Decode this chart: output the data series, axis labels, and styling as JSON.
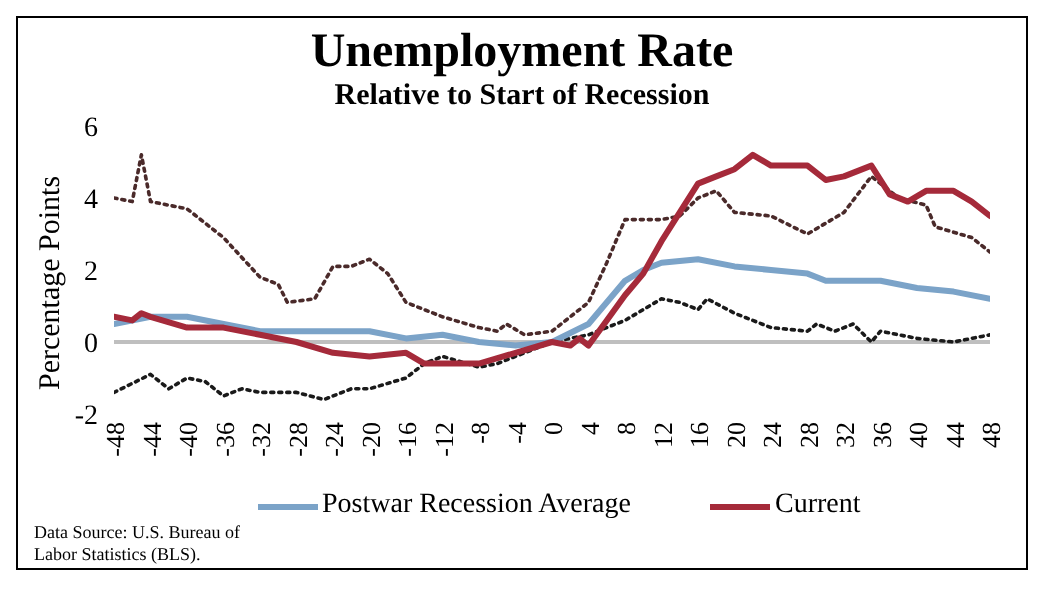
{
  "chart_data": {
    "type": "line",
    "title": "Unemployment Rate",
    "subtitle": "Relative to Start of Recession",
    "ylabel": "Percentage Points",
    "xlim": [
      -48,
      48
    ],
    "xticks": [
      -48,
      -44,
      -40,
      -36,
      -32,
      -28,
      -24,
      -20,
      -16,
      -12,
      -8,
      -4,
      0,
      4,
      8,
      12,
      16,
      20,
      24,
      28,
      32,
      36,
      40,
      44,
      48
    ],
    "ylim": [
      -2,
      6
    ],
    "yticks": [
      -2,
      0,
      2,
      4,
      6
    ],
    "grid": false,
    "legend": "bottom",
    "marker": "none",
    "ref_lines": [
      {
        "axis": "y",
        "value": 0,
        "color": "#bfbfbf"
      }
    ],
    "annotations": [
      "Data Source: U.S. Bureau of Labor Statistics (BLS)."
    ],
    "series": [
      {
        "line_style": "dotted",
        "color": "#4a2a2a",
        "x": [
          -48,
          -46,
          -45,
          -44,
          -40,
          -36,
          -32,
          -30,
          -29,
          -26,
          -24,
          -22,
          -20,
          -18,
          -16,
          -12,
          -8,
          -6,
          -5,
          -3,
          0,
          4,
          6,
          8,
          12,
          14,
          16,
          18,
          20,
          24,
          28,
          32,
          35,
          38,
          41,
          42,
          46,
          48
        ],
        "values": [
          4.0,
          3.9,
          5.2,
          3.9,
          3.7,
          2.9,
          1.8,
          1.6,
          1.1,
          1.2,
          2.1,
          2.1,
          2.3,
          1.9,
          1.1,
          0.7,
          0.4,
          0.3,
          0.5,
          0.2,
          0.3,
          1.1,
          2.2,
          3.4,
          3.4,
          3.5,
          4.0,
          4.2,
          3.6,
          3.5,
          3.0,
          3.6,
          4.6,
          4.0,
          3.8,
          3.2,
          2.9,
          2.5
        ]
      },
      {
        "line_style": "dotted",
        "color": "#1a1a1a",
        "x": [
          -48,
          -44,
          -42,
          -40,
          -38,
          -36,
          -34,
          -32,
          -28,
          -25,
          -22,
          -20,
          -16,
          -14,
          -12,
          -8,
          -6,
          -4,
          0,
          4,
          8,
          12,
          14,
          16,
          17,
          20,
          24,
          28,
          29,
          31,
          33,
          35,
          36,
          40,
          44,
          46,
          48
        ],
        "values": [
          -1.4,
          -0.9,
          -1.3,
          -1.0,
          -1.1,
          -1.5,
          -1.3,
          -1.4,
          -1.4,
          -1.6,
          -1.3,
          -1.3,
          -1.0,
          -0.6,
          -0.4,
          -0.7,
          -0.6,
          -0.4,
          0,
          0.2,
          0.6,
          1.2,
          1.1,
          0.9,
          1.2,
          0.8,
          0.4,
          0.3,
          0.5,
          0.3,
          0.5,
          0,
          0.3,
          0.1,
          0,
          0.1,
          0.2
        ]
      },
      {
        "name": "Postwar Recession Average",
        "color": "#7ba3c8",
        "x": [
          -48,
          -44,
          -40,
          -36,
          -32,
          -28,
          -24,
          -20,
          -16,
          -12,
          -8,
          -4,
          0,
          4,
          8,
          10,
          12,
          16,
          20,
          24,
          28,
          30,
          36,
          40,
          44,
          48
        ],
        "values": [
          0.5,
          0.7,
          0.7,
          0.5,
          0.3,
          0.3,
          0.3,
          0.3,
          0.1,
          0.2,
          0,
          -0.1,
          0,
          0.5,
          1.7,
          2.0,
          2.2,
          2.3,
          2.1,
          2.0,
          1.9,
          1.7,
          1.7,
          1.5,
          1.4,
          1.2
        ]
      },
      {
        "name": "Current",
        "color": "#a52a3a",
        "x": [
          -48,
          -46,
          -45,
          -44,
          -40,
          -36,
          -32,
          -28,
          -24,
          -20,
          -16,
          -14,
          -12,
          -8,
          -4,
          0,
          2,
          3,
          4,
          6,
          8,
          10,
          12,
          16,
          18,
          20,
          22,
          24,
          28,
          30,
          32,
          35,
          37,
          39,
          41,
          44,
          46,
          48
        ],
        "values": [
          0.7,
          0.6,
          0.8,
          0.7,
          0.4,
          0.4,
          0.2,
          0,
          -0.3,
          -0.4,
          -0.3,
          -0.6,
          -0.6,
          -0.6,
          -0.3,
          0,
          -0.1,
          0.1,
          -0.1,
          0.6,
          1.3,
          1.9,
          2.8,
          4.4,
          4.6,
          4.8,
          5.2,
          4.9,
          4.9,
          4.5,
          4.6,
          4.9,
          4.1,
          3.9,
          4.2,
          4.2,
          3.9,
          3.5
        ]
      }
    ]
  }
}
